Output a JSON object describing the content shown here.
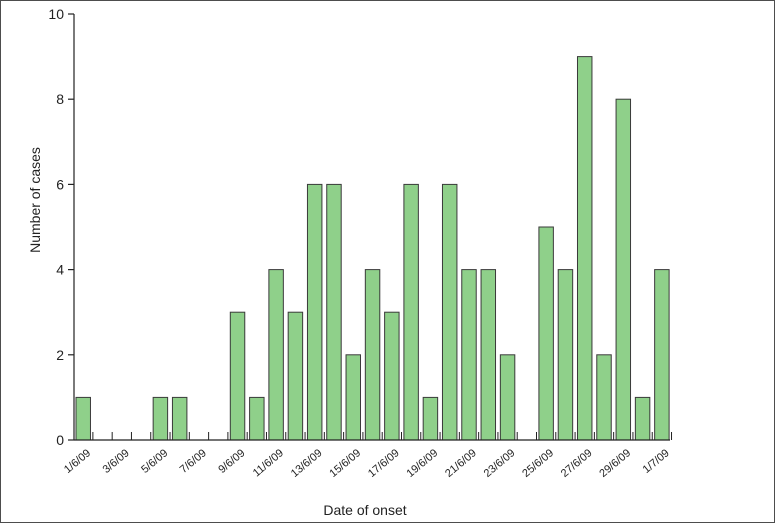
{
  "chart_data": {
    "type": "bar",
    "title": "",
    "xlabel": "Date of onset",
    "ylabel": "Number of cases",
    "ylim": [
      0,
      10
    ],
    "yticks": [
      0,
      2,
      4,
      6,
      8,
      10
    ],
    "categories": [
      "1/6/09",
      "2/6/09",
      "3/6/09",
      "4/6/09",
      "5/6/09",
      "6/6/09",
      "7/6/09",
      "8/6/09",
      "9/6/09",
      "10/6/09",
      "11/6/09",
      "12/6/09",
      "13/6/09",
      "14/6/09",
      "15/6/09",
      "16/6/09",
      "17/6/09",
      "18/6/09",
      "19/6/09",
      "20/6/09",
      "21/6/09",
      "22/6/09",
      "23/6/09",
      "24/6/09",
      "25/6/09",
      "26/6/09",
      "27/6/09",
      "28/6/09",
      "29/6/09",
      "30/6/09",
      "1/7/09"
    ],
    "tick_labels": [
      "1/6/09",
      "3/6/09",
      "5/6/09",
      "7/6/09",
      "9/6/09",
      "11/6/09",
      "13/6/09",
      "15/6/09",
      "17/6/09",
      "19/6/09",
      "21/6/09",
      "23/6/09",
      "25/6/09",
      "27/6/09",
      "29/6/09",
      "1/7/09"
    ],
    "values": [
      1,
      0,
      0,
      0,
      1,
      1,
      0,
      0,
      3,
      1,
      4,
      3,
      6,
      6,
      2,
      4,
      3,
      6,
      1,
      6,
      4,
      4,
      2,
      0,
      5,
      4,
      9,
      2,
      8,
      1,
      4
    ],
    "bar_color": "#8fd08a",
    "bar_edge_color": "#3a3a3a",
    "axis_color": "#222222",
    "grid": false,
    "legend": false
  }
}
